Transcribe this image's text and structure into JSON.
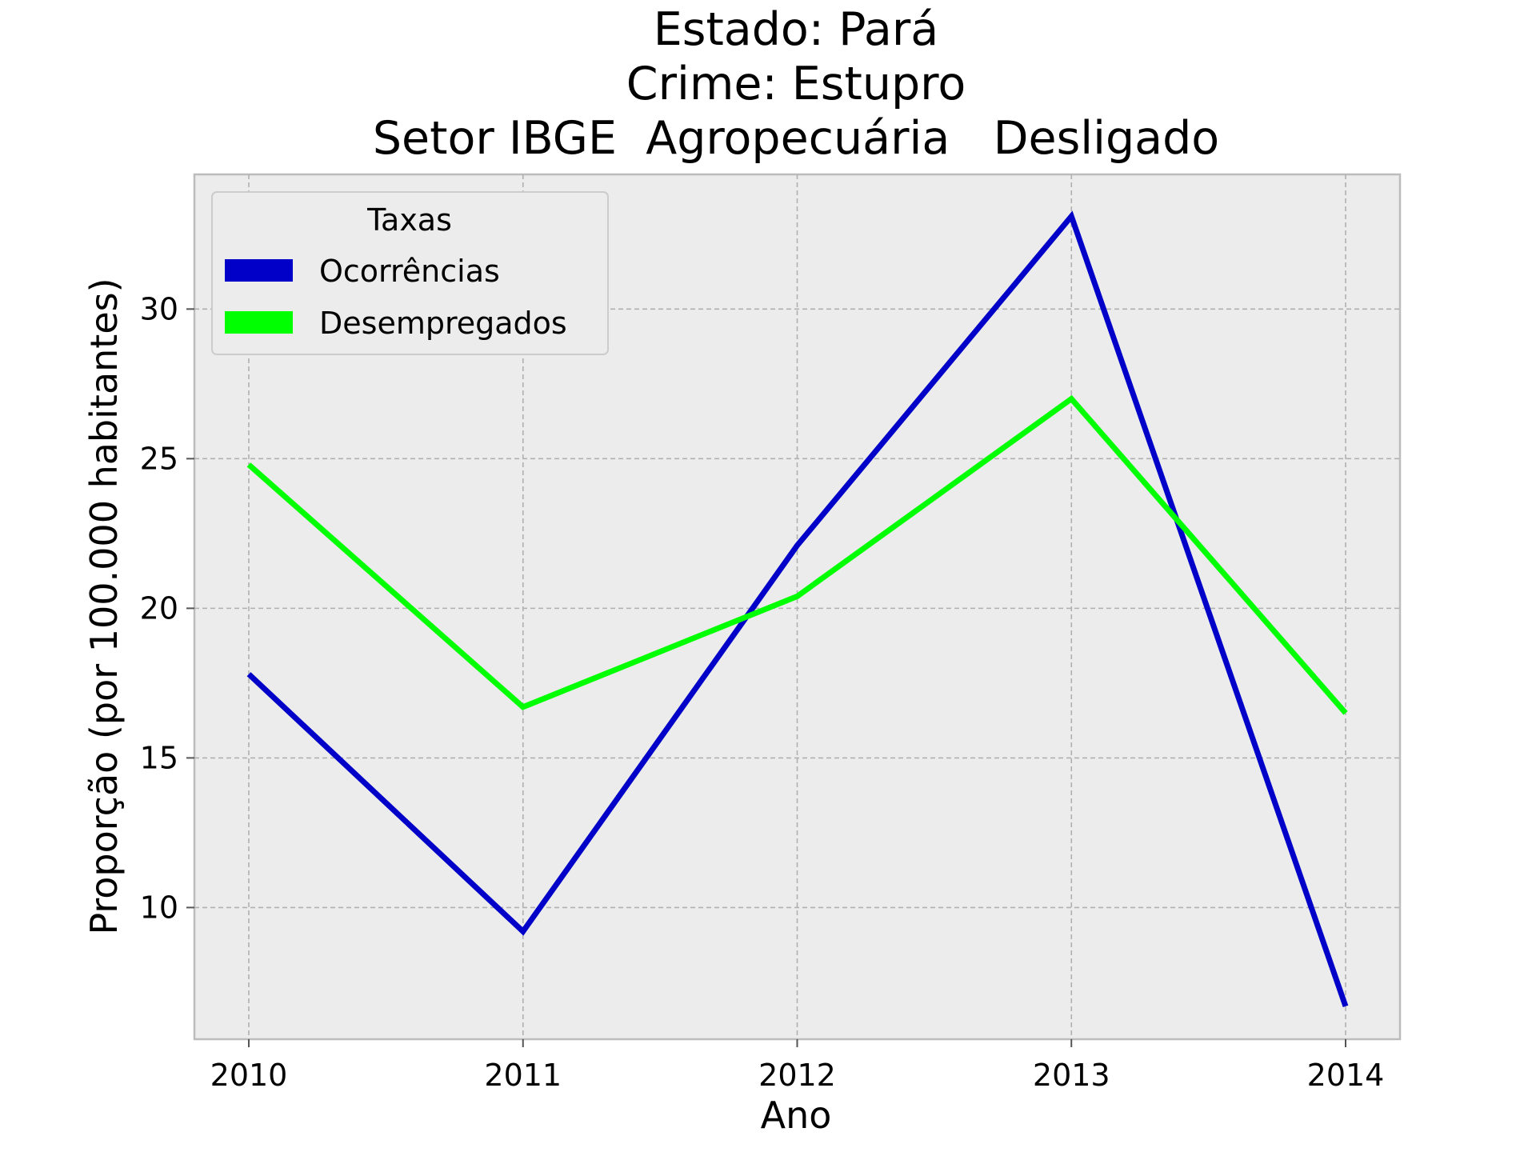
{
  "chart_data": {
    "type": "line",
    "title_lines": [
      "Estado: Pará",
      "Crime: Estupro",
      "Setor IBGE  Agropecuária   Desligado"
    ],
    "xlabel": "Ano",
    "ylabel": "Proporção (por 100.000 habitantes)",
    "x": [
      "2010",
      "2011",
      "2012",
      "2013",
      "2014"
    ],
    "yticks": [
      "10",
      "15",
      "20",
      "25",
      "30"
    ],
    "ylim": [
      5.6,
      34.5
    ],
    "grid": true,
    "legend": {
      "title": "Taxas",
      "placement": "top-left"
    },
    "series": [
      {
        "name": "Ocorrências",
        "color": "#0000c8",
        "values": [
          17.8,
          9.2,
          22.1,
          33.1,
          6.7
        ]
      },
      {
        "name": "Desempregados",
        "color": "#00ff00",
        "values": [
          24.8,
          16.7,
          20.4,
          27.0,
          16.5
        ]
      }
    ]
  }
}
